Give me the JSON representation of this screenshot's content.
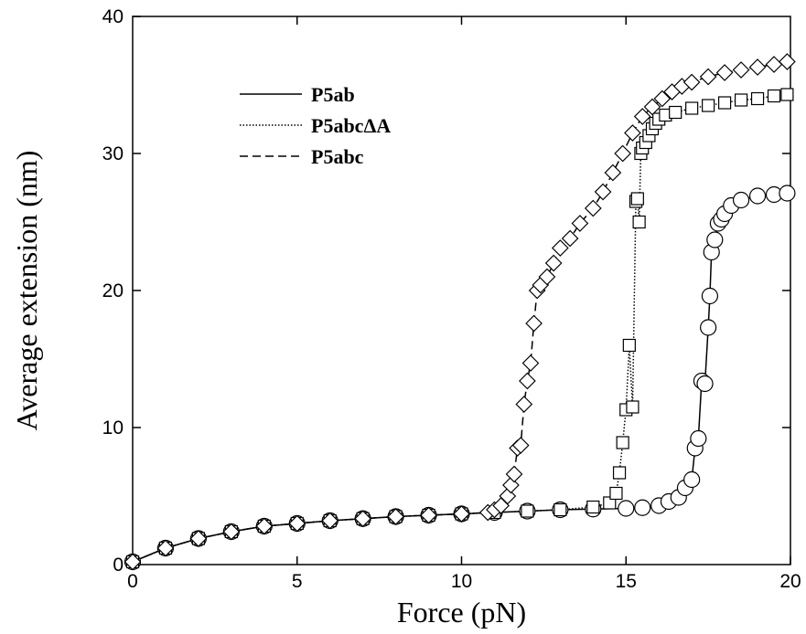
{
  "chart_data": {
    "type": "line",
    "xlabel": "Force (pN)",
    "ylabel": "Average extension (nm)",
    "xlim": [
      0,
      20
    ],
    "ylim": [
      0,
      40
    ],
    "xticks": [
      "0",
      "5",
      "10",
      "15",
      "20"
    ],
    "yticks": [
      "0",
      "10",
      "20",
      "30",
      "40"
    ],
    "grid": false,
    "legend_position": "top-left",
    "series": [
      {
        "name": "P5ab",
        "line_style": "solid",
        "marker": "circle",
        "x": [
          0,
          1,
          2,
          3,
          4,
          5,
          6,
          7,
          8,
          9,
          10,
          11,
          12,
          13,
          14,
          15,
          15.5,
          16,
          16.3,
          16.6,
          16.8,
          17.0,
          17.1,
          17.2,
          17.3,
          17.4,
          17.5,
          17.55,
          17.6,
          17.7,
          17.8,
          17.9,
          18.0,
          18.2,
          18.5,
          19.0,
          19.5,
          19.9
        ],
        "values": [
          0.2,
          1.2,
          1.9,
          2.4,
          2.8,
          3.0,
          3.2,
          3.35,
          3.5,
          3.6,
          3.7,
          3.8,
          3.9,
          4.0,
          4.05,
          4.1,
          4.15,
          4.3,
          4.6,
          4.9,
          5.6,
          6.2,
          8.5,
          9.2,
          13.4,
          13.2,
          17.3,
          19.6,
          22.8,
          23.7,
          24.9,
          25.2,
          25.6,
          26.2,
          26.6,
          26.9,
          27.0,
          27.1
        ]
      },
      {
        "name": "P5abcΔA",
        "line_style": "dotted",
        "marker": "square",
        "x": [
          0,
          1,
          2,
          3,
          4,
          5,
          6,
          7,
          8,
          9,
          10,
          11,
          12,
          13,
          14,
          14.5,
          14.7,
          14.8,
          14.9,
          15.0,
          15.1,
          15.2,
          15.3,
          15.35,
          15.4,
          15.45,
          15.5,
          15.6,
          15.7,
          15.8,
          15.9,
          16.0,
          16.2,
          16.5,
          17.0,
          17.5,
          18.0,
          18.5,
          19.0,
          19.5,
          19.9
        ],
        "values": [
          0.2,
          1.2,
          1.9,
          2.4,
          2.8,
          3.0,
          3.2,
          3.35,
          3.5,
          3.6,
          3.7,
          3.8,
          3.9,
          4.0,
          4.2,
          4.5,
          5.2,
          6.7,
          8.9,
          11.3,
          16.0,
          11.5,
          26.5,
          26.7,
          25.0,
          30.0,
          30.4,
          30.8,
          31.3,
          31.8,
          32.2,
          32.5,
          32.8,
          33.0,
          33.3,
          33.5,
          33.7,
          33.9,
          34.0,
          34.2,
          34.3
        ]
      },
      {
        "name": "P5abc",
        "line_style": "dashed",
        "marker": "diamond",
        "x": [
          0,
          1,
          2,
          3,
          4,
          5,
          6,
          7,
          8,
          9,
          10,
          10.8,
          11.0,
          11.2,
          11.4,
          11.5,
          11.6,
          11.7,
          11.8,
          11.9,
          12.0,
          12.1,
          12.2,
          12.3,
          12.4,
          12.6,
          12.8,
          13.0,
          13.3,
          13.6,
          14.0,
          14.3,
          14.6,
          14.9,
          15.2,
          15.5,
          15.8,
          16.1,
          16.4,
          16.7,
          17.0,
          17.5,
          18.0,
          18.5,
          19.0,
          19.5,
          19.9
        ],
        "values": [
          0.2,
          1.2,
          1.9,
          2.4,
          2.8,
          3.0,
          3.2,
          3.35,
          3.5,
          3.6,
          3.7,
          3.8,
          4.0,
          4.3,
          5.0,
          5.8,
          6.6,
          8.5,
          8.7,
          11.7,
          13.4,
          14.7,
          17.6,
          20.0,
          20.4,
          21.0,
          22.0,
          23.1,
          23.8,
          24.9,
          26.0,
          27.2,
          28.6,
          30.0,
          31.5,
          32.7,
          33.4,
          34.0,
          34.5,
          34.9,
          35.2,
          35.6,
          35.9,
          36.1,
          36.3,
          36.5,
          36.7
        ]
      }
    ]
  }
}
